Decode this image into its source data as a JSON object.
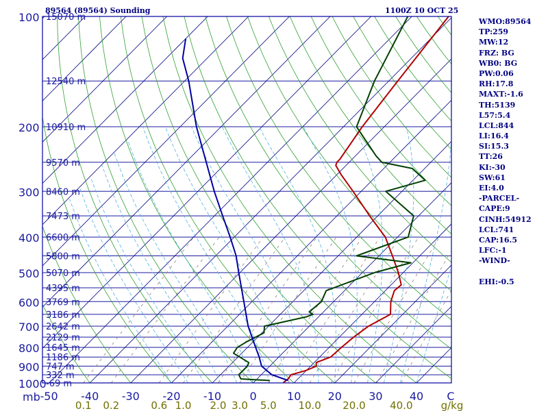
{
  "header": {
    "station": "89564 (89564) Sounding",
    "time": "1100Z 10 OCT 25"
  },
  "colors": {
    "frame": "#0000a0",
    "isobar": "#1a1aa0",
    "isotherm": "#000080",
    "dry_adiabat": "#30a030",
    "moist_adiabat": "#50b0e0",
    "mixing_ratio": "#908070",
    "temperature": "#b00000",
    "dewpoint": "#004000",
    "parcel": "#0000a0",
    "mixing_label": "#707000",
    "index_text": "#000080"
  },
  "indices": [
    {
      "label": "WMO:89564"
    },
    {
      "label": "TP:259"
    },
    {
      "label": "MW:12"
    },
    {
      "label": "FRZ: BG"
    },
    {
      "label": "WB0: BG"
    },
    {
      "label": "PW:0.06"
    },
    {
      "label": "RH:17.8"
    },
    {
      "label": "MAXT:-1.6"
    },
    {
      "label": "TH:5139"
    },
    {
      "label": "L57:5.4"
    },
    {
      "label": "LCL:844"
    },
    {
      "label": "LI:16.4"
    },
    {
      "label": "SI:15.3"
    },
    {
      "label": "TT:26"
    },
    {
      "label": "KI:-30"
    },
    {
      "label": "SW:61"
    },
    {
      "label": "EI:4.0"
    },
    {
      "label": "-PARCEL-"
    },
    {
      "label": "CAPE:9"
    },
    {
      "label": "CINH:54912"
    },
    {
      "label": "LCL:741"
    },
    {
      "label": "CAP:16.5"
    },
    {
      "label": "LFC:-1"
    },
    {
      "label": "-WIND-"
    },
    {
      "label": ""
    },
    {
      "label": "EHI:-0.5"
    }
  ],
  "chart_data": {
    "type": "line",
    "diagram": "skew-t log-p",
    "pressure_unit": "mb",
    "temperature_unit": "C",
    "mixing_ratio_unit": "g/kg",
    "ylim": [
      1000,
      100
    ],
    "xlim": [
      -50,
      50
    ],
    "log_pressure_axis": true,
    "pressure_ticks": [
      100,
      200,
      300,
      400,
      500,
      600,
      700,
      800,
      900,
      1000
    ],
    "temperature_ticks": [
      -50,
      -40,
      -30,
      -20,
      -10,
      0,
      10,
      20,
      30,
      40
    ],
    "temperature_tick_labels": [
      "-50",
      "-40",
      "-30",
      "-20",
      "-10",
      "0",
      "10",
      "20",
      "30",
      "40"
    ],
    "temperature_axis_end_label": "C",
    "mixing_ratio_ticks": [
      0.1,
      0.2,
      0.6,
      1.0,
      2.0,
      3.0,
      5.0,
      10.0,
      20.0,
      40.0
    ],
    "mixing_ratio_tick_labels": [
      "0.1",
      "0.2",
      "0.6",
      "1.0",
      "2.0",
      "3.0",
      "5.0",
      "10.0",
      "20.0",
      "40.0"
    ],
    "heights": [
      {
        "p": 100,
        "label": "15070 m"
      },
      {
        "p": 150,
        "label": "12540 m"
      },
      {
        "p": 200,
        "label": "10910 m"
      },
      {
        "p": 250,
        "label": "9570 m"
      },
      {
        "p": 300,
        "label": "8460 m"
      },
      {
        "p": 350,
        "label": "7473 m"
      },
      {
        "p": 400,
        "label": "6600 m"
      },
      {
        "p": 450,
        "label": "5800 m"
      },
      {
        "p": 500,
        "label": "5070 m"
      },
      {
        "p": 550,
        "label": "4395 m"
      },
      {
        "p": 600,
        "label": "3769 m"
      },
      {
        "p": 650,
        "label": "3186 m"
      },
      {
        "p": 700,
        "label": "2642 m"
      },
      {
        "p": 750,
        "label": "2129 m"
      },
      {
        "p": 800,
        "label": "1645 m"
      },
      {
        "p": 850,
        "label": "1186 m"
      },
      {
        "p": 900,
        "label": "747 m"
      },
      {
        "p": 950,
        "label": "332 m"
      },
      {
        "p": 1000,
        "label": "-69 m"
      }
    ],
    "series": [
      {
        "role": "temperature",
        "points": [
          [
            998,
            7.3
          ],
          [
            975,
            7.6
          ],
          [
            950,
            7.3
          ],
          [
            925,
            9.9
          ],
          [
            900,
            11.4
          ],
          [
            880,
            10.5
          ],
          [
            850,
            12.7
          ],
          [
            800,
            13.0
          ],
          [
            750,
            13.5
          ],
          [
            700,
            14.5
          ],
          [
            650,
            17.0
          ],
          [
            600,
            14.0
          ],
          [
            560,
            12.2
          ],
          [
            540,
            12.5
          ],
          [
            500,
            8.8
          ],
          [
            450,
            3.3
          ],
          [
            400,
            -3.0
          ],
          [
            350,
            -12.0
          ],
          [
            300,
            -22.0
          ],
          [
            270,
            -29.0
          ],
          [
            255,
            -32.5
          ],
          [
            250,
            -33.0
          ],
          [
            245,
            -33.0
          ],
          [
            200,
            -35.4
          ],
          [
            150,
            -37.8
          ],
          [
            100,
            -41.0
          ]
        ]
      },
      {
        "role": "dewpoint",
        "points": [
          [
            985,
            3.5
          ],
          [
            975,
            -4.0
          ],
          [
            950,
            -5.5
          ],
          [
            900,
            -5.5
          ],
          [
            880,
            -6.0
          ],
          [
            830,
            -12.0
          ],
          [
            800,
            -12.5
          ],
          [
            770,
            -11.5
          ],
          [
            730,
            -9.5
          ],
          [
            700,
            -11.0
          ],
          [
            660,
            -3.0
          ],
          [
            650,
            -2.0
          ],
          [
            640,
            -3.5
          ],
          [
            600,
            -3.0
          ],
          [
            560,
            -4.5
          ],
          [
            500,
            3.0
          ],
          [
            470,
            9.5
          ],
          [
            450,
            -5.5
          ],
          [
            400,
            2.6
          ],
          [
            350,
            -1.2
          ],
          [
            300,
            -14.0
          ],
          [
            280,
            -7.0
          ],
          [
            260,
            -13.0
          ],
          [
            250,
            -22.0
          ],
          [
            240,
            -25.0
          ],
          [
            200,
            -36.8
          ],
          [
            150,
            -43.5
          ],
          [
            100,
            -51.0
          ]
        ]
      },
      {
        "role": "parcel",
        "points": [
          [
            985,
            8.0
          ],
          [
            950,
            2.6
          ],
          [
            900,
            -2.0
          ],
          [
            850,
            -4.8
          ],
          [
            800,
            -8.0
          ],
          [
            700,
            -15.0
          ],
          [
            600,
            -22.0
          ],
          [
            500,
            -30.3
          ],
          [
            450,
            -35.0
          ],
          [
            400,
            -41.0
          ],
          [
            350,
            -48.0
          ],
          [
            300,
            -56.0
          ],
          [
            250,
            -65.0
          ],
          [
            200,
            -76.0
          ],
          [
            150,
            -89.0
          ],
          [
            130,
            -96.0
          ],
          [
            115,
            -100.0
          ]
        ]
      }
    ]
  }
}
